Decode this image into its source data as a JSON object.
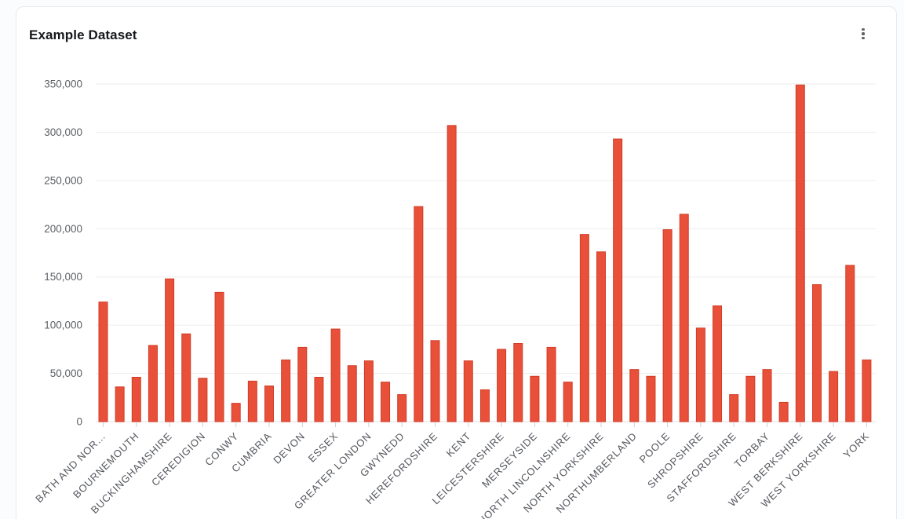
{
  "card": {
    "title": "Example Dataset"
  },
  "chart_data": {
    "type": "bar",
    "title": "Example Dataset",
    "xlabel": "",
    "ylabel": "",
    "ylim": [
      0,
      350000
    ],
    "grid": "horizontal",
    "legend": "none",
    "bar_color": "#e8503a",
    "bar_border_color": "#d13d26",
    "x_label_rotation": -45,
    "x_labels_shown_every": 2,
    "y_ticks": [
      0,
      50000,
      100000,
      150000,
      200000,
      250000,
      300000,
      350000
    ],
    "y_tick_labels": [
      "0",
      "50,000",
      "100,000",
      "150,000",
      "200,000",
      "250,000",
      "300,000",
      "350,000"
    ],
    "x_tick_labels": [
      "BATH AND NOR…",
      "BOURNEMOUTH",
      "BUCKINGHAMSHIRE",
      "CEREDIGION",
      "CONWY",
      "CUMBRIA",
      "DEVON",
      "ESSEX",
      "GREATER LONDON",
      "GWYNEDD",
      "HEREFORDSHIRE",
      "KENT",
      "LEICESTERSHIRE",
      "MERSEYSIDE",
      "NORTH LINCOLNSHIRE",
      "NORTH YORKSHIRE",
      "NORTHUMBERLAND",
      "POOLE",
      "SHROPSHIRE",
      "STAFFORDSHIRE",
      "TORBAY",
      "WEST BERKSHIRE",
      "WEST YORKSHIRE",
      "YORK"
    ],
    "values": [
      124000,
      36000,
      46000,
      79000,
      148000,
      91000,
      45000,
      134000,
      19000,
      42000,
      37000,
      64000,
      77000,
      46000,
      96000,
      58000,
      63000,
      41000,
      28000,
      223000,
      84000,
      307000,
      63000,
      33000,
      75000,
      81000,
      47000,
      77000,
      41000,
      194000,
      176000,
      293000,
      54000,
      47000,
      199000,
      215000,
      97000,
      120000,
      28000,
      47000,
      54000,
      20000,
      349000,
      142000,
      52000,
      162000,
      64000
    ]
  }
}
